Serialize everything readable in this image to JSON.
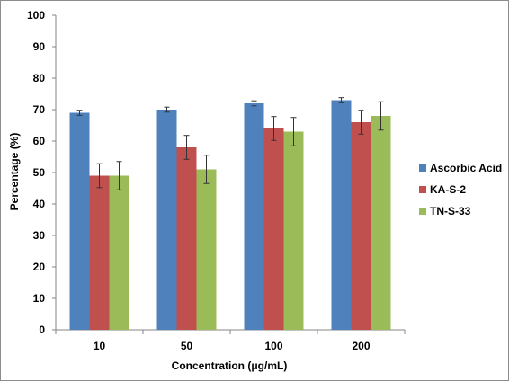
{
  "chart_data": {
    "type": "bar",
    "title": "",
    "xlabel": "Concentration (μg/mL)",
    "ylabel": "Percentage (%)",
    "ylim": [
      0,
      100
    ],
    "yticks": [
      "0",
      "10",
      "20",
      "30",
      "40",
      "50",
      "60",
      "70",
      "80",
      "90",
      "100"
    ],
    "categories": [
      "10",
      "50",
      "100",
      "200"
    ],
    "grid": false,
    "legend_position": "right",
    "error_bars": true,
    "series": [
      {
        "name": "Ascorbic Acid",
        "color": "#4f81bd",
        "values": [
          69,
          70,
          72,
          73
        ],
        "errors": [
          0.8,
          0.8,
          0.8,
          0.8
        ]
      },
      {
        "name": "KA-S-2",
        "color": "#c0504d",
        "values": [
          49,
          58,
          64,
          66
        ],
        "errors": [
          3.8,
          3.8,
          3.8,
          3.8
        ]
      },
      {
        "name": "TN-S-33",
        "color": "#9bbb59",
        "values": [
          49,
          51,
          63,
          68
        ],
        "errors": [
          4.5,
          4.5,
          4.5,
          4.5
        ]
      }
    ]
  }
}
